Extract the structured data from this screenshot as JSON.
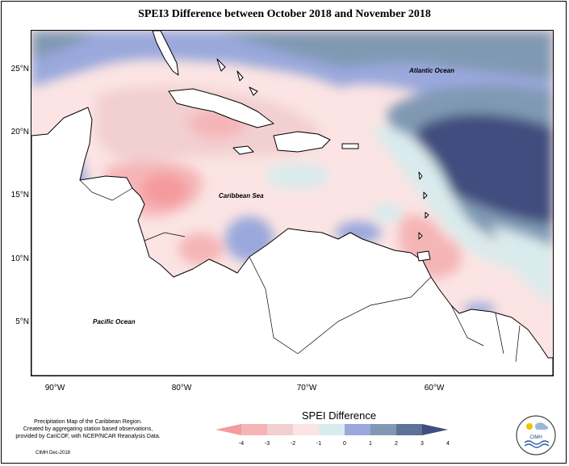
{
  "title": "SPEI3 Difference between October 2018 and November 2018",
  "latitude_labels": [
    "25°N",
    "20°N",
    "15°N",
    "10°N",
    "5°N"
  ],
  "longitude_labels": [
    "90°W",
    "80°W",
    "70°W",
    "60°W"
  ],
  "map_labels": {
    "atlantic": "Atlantic Ocean",
    "caribbean": "Caribbean Sea",
    "pacific": "Pacific Ocean"
  },
  "legend": {
    "title": "SPEI Difference",
    "ticks": [
      "-4",
      "-3",
      "-2",
      "-1",
      "0",
      "1",
      "2",
      "3",
      "4"
    ],
    "colors": [
      "#f59a9e",
      "#f5b5b7",
      "#f2cfd0",
      "#fbe4e3",
      "#d9ebed",
      "#9aa8dc",
      "#8099b3",
      "#5e7296",
      "#414d7e"
    ]
  },
  "credit": {
    "line1": "Precipitation Map of the Caribbean Region.",
    "line2": "Created by aggregating station based observations,",
    "line3": "provided by CariCOF, with NCEP/NCAR Reanalysis Data.",
    "date": "CIMH Dec-2018"
  },
  "logo_text": "CIMH",
  "colors": {
    "land": "#ffffff",
    "neutral": "#fbe4e3",
    "light_pink": "#f2cfd0",
    "pink": "#f5b5b7",
    "deep_pink": "#f59a9e",
    "pale_blue": "#d9ebed",
    "periwinkle": "#9aa8dc",
    "steel_blue": "#8099b3",
    "dark_blue": "#414d7e"
  }
}
